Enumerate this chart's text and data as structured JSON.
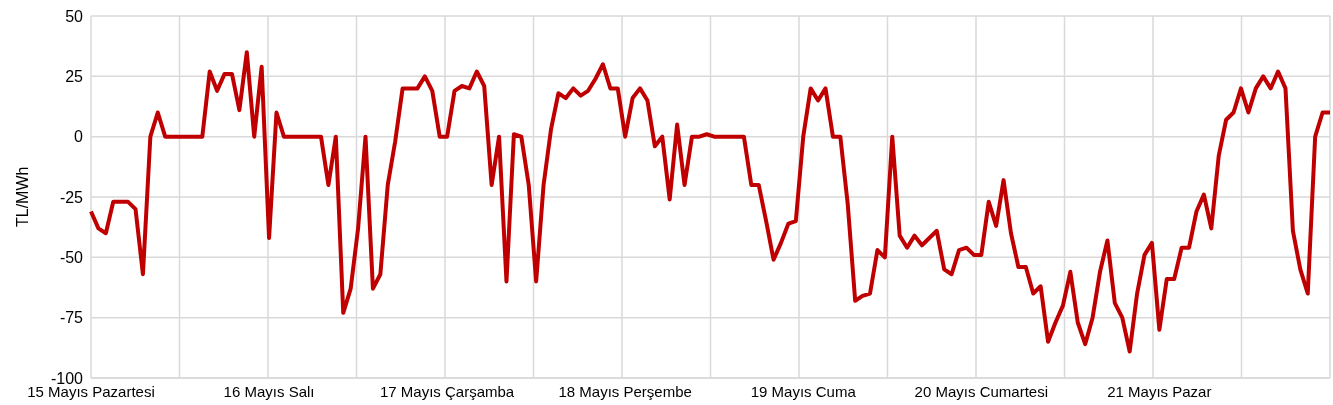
{
  "chart_data": {
    "type": "line",
    "ylabel": "TL/MWh",
    "categories": [
      "15 Mayıs Pazartesi",
      null,
      null,
      null,
      null,
      null,
      null,
      null,
      null,
      null,
      null,
      null,
      null,
      null,
      null,
      null,
      null,
      null,
      null,
      null,
      null,
      null,
      null,
      null,
      "16 Mayıs Salı",
      null,
      null,
      null,
      null,
      null,
      null,
      null,
      null,
      null,
      null,
      null,
      null,
      null,
      null,
      null,
      null,
      null,
      null,
      null,
      null,
      null,
      null,
      null,
      "17 Mayıs Çarşamba",
      null,
      null,
      null,
      null,
      null,
      null,
      null,
      null,
      null,
      null,
      null,
      null,
      null,
      null,
      null,
      null,
      null,
      null,
      null,
      null,
      null,
      null,
      null,
      "18 Mayıs Perşembe",
      null,
      null,
      null,
      null,
      null,
      null,
      null,
      null,
      null,
      null,
      null,
      null,
      null,
      null,
      null,
      null,
      null,
      null,
      null,
      null,
      null,
      null,
      null,
      "19 Mayıs Cuma",
      null,
      null,
      null,
      null,
      null,
      null,
      null,
      null,
      null,
      null,
      null,
      null,
      null,
      null,
      null,
      null,
      null,
      null,
      null,
      null,
      null,
      null,
      null,
      "20 Mayıs Cumartesi",
      null,
      null,
      null,
      null,
      null,
      null,
      null,
      null,
      null,
      null,
      null,
      null,
      null,
      null,
      null,
      null,
      null,
      null,
      null,
      null,
      null,
      null,
      null,
      "21 Mayıs Pazar",
      null,
      null,
      null,
      null,
      null,
      null,
      null,
      null,
      null,
      null,
      null,
      null,
      null,
      null,
      null,
      null,
      null,
      null,
      null,
      null,
      null,
      null,
      null
    ],
    "series": [
      {
        "color": "#c00000",
        "values": [
          -31,
          -38,
          -40,
          -27,
          -27,
          -27,
          -30,
          -57,
          0,
          10,
          0,
          0,
          0,
          0,
          0,
          0,
          27,
          19,
          26,
          26,
          11,
          35,
          0,
          29,
          -42,
          10,
          0,
          0,
          0,
          0,
          0,
          0,
          -20,
          0,
          -73,
          -63,
          -38,
          0,
          -63,
          -57,
          -20,
          -2,
          20,
          20,
          20,
          25,
          19,
          0,
          0,
          19,
          21,
          20,
          27,
          21,
          -20,
          0,
          -60,
          1,
          0,
          -20,
          -60,
          -20,
          3,
          18,
          16,
          20,
          17,
          19,
          24,
          30,
          20,
          20,
          0,
          16,
          20,
          15,
          -4,
          0,
          -26,
          5,
          -20,
          0,
          0,
          1,
          0,
          0,
          0,
          0,
          0,
          -20,
          -20,
          -35,
          -51,
          -44,
          -36,
          -35,
          0,
          20,
          15,
          20,
          0,
          0,
          -28,
          -68,
          -66,
          -65,
          -47,
          -50,
          0,
          -41,
          -46,
          -41,
          -45,
          -42,
          -39,
          -55,
          -57,
          -47,
          -46,
          -49,
          -49,
          -27,
          -37,
          -18,
          -40,
          -54,
          -54,
          -65,
          -62,
          -85,
          -77,
          -70,
          -56,
          -77,
          -86,
          -75,
          -56,
          -43,
          -69,
          -75,
          -89,
          -65,
          -49,
          -44,
          -80,
          -59,
          -59,
          -46,
          -46,
          -31,
          -24,
          -38,
          -8,
          7,
          10,
          20,
          10,
          20,
          25,
          20,
          27,
          20,
          -39,
          -55,
          -65,
          0,
          10,
          10
        ]
      }
    ],
    "ylim": [
      -100,
      50
    ],
    "yticks": [
      -100,
      -75,
      -50,
      -25,
      0,
      25,
      50
    ],
    "grid": true,
    "legend": false,
    "marker": "none",
    "line_style": "solid"
  }
}
